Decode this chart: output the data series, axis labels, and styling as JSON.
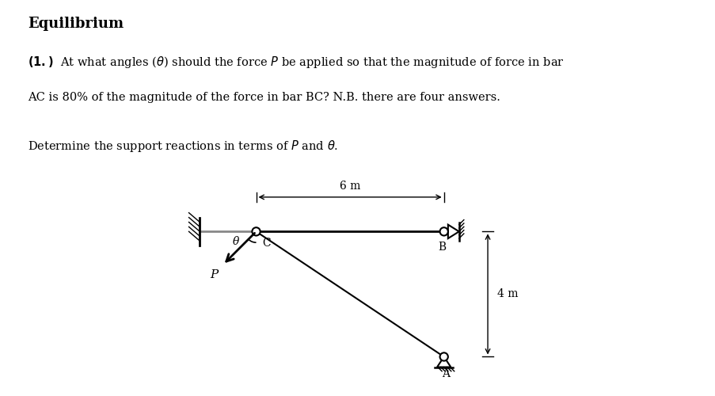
{
  "title": "Equilibrium",
  "text1": "(1.)  At what angles (θ) should the force $P$ be applied so that the magnitude of force in bar",
  "text2": "AC is 80% of the magnitude of the force in bar BC? N.B. there are four answers.",
  "text3": "Determine the support reactions in terms of $P$ and θ.",
  "bg_color": "#ffffff",
  "C": [
    0.0,
    0.0
  ],
  "B": [
    6.0,
    0.0
  ],
  "A": [
    6.0,
    -4.0
  ],
  "label_6m": "6 m",
  "label_4m": "4 m",
  "theta_label": "θ",
  "P_label": "P",
  "C_label": "C",
  "B_label": "B",
  "A_label": "A",
  "fig_width": 9.04,
  "fig_height": 5.0,
  "dpi": 100
}
